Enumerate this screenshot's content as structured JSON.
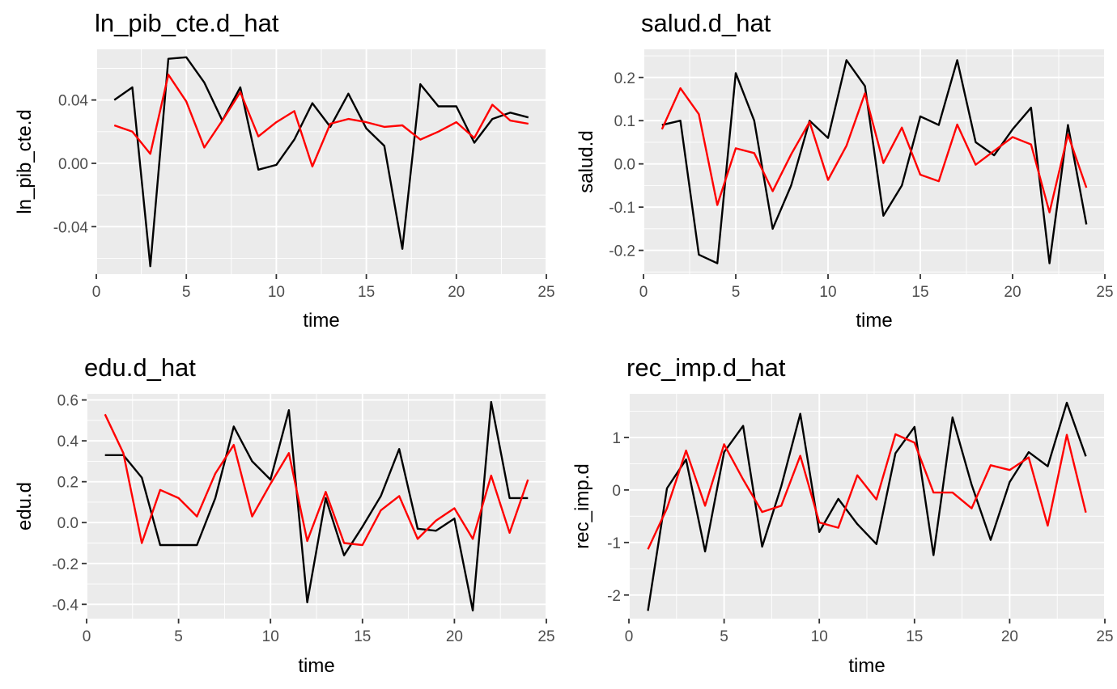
{
  "chart_data": [
    {
      "type": "line",
      "title": "ln_pib_cte.d_hat",
      "xlabel": "time",
      "ylabel": "ln_pib_cte.d",
      "xlim": [
        0,
        25
      ],
      "ylim": [
        -0.07,
        0.072
      ],
      "x_ticks": [
        0,
        5,
        10,
        15,
        20,
        25
      ],
      "y_ticks": [
        -0.04,
        0.0,
        0.04
      ],
      "y_tick_labels": [
        "-0.04",
        "0.00",
        "0.04"
      ],
      "grid": true,
      "legend": "none",
      "series": [
        {
          "color": "#000000",
          "x": [
            1,
            2,
            3,
            4,
            5,
            6,
            7,
            8,
            9,
            10,
            11,
            12,
            13,
            14,
            15,
            16,
            17,
            18,
            19,
            20,
            21,
            22,
            23,
            24
          ],
          "values": [
            0.04,
            0.048,
            -0.065,
            0.066,
            0.067,
            0.051,
            0.027,
            0.048,
            -0.004,
            -0.001,
            0.015,
            0.038,
            0.023,
            0.044,
            0.022,
            0.011,
            -0.054,
            0.05,
            0.036,
            0.036,
            0.013,
            0.028,
            0.032,
            0.029
          ]
        },
        {
          "color": "#ff0000",
          "x": [
            1,
            2,
            3,
            4,
            5,
            6,
            7,
            8,
            9,
            10,
            11,
            12,
            13,
            14,
            15,
            16,
            17,
            18,
            19,
            20,
            21,
            22,
            23,
            24
          ],
          "values": [
            0.024,
            0.02,
            0.006,
            0.056,
            0.039,
            0.01,
            0.027,
            0.045,
            0.017,
            0.026,
            0.033,
            -0.002,
            0.025,
            0.028,
            0.026,
            0.023,
            0.024,
            0.015,
            0.02,
            0.026,
            0.016,
            0.037,
            0.027,
            0.025
          ]
        }
      ]
    },
    {
      "type": "line",
      "title": "salud.d_hat",
      "xlabel": "time",
      "ylabel": "salud.d",
      "xlim": [
        0,
        25
      ],
      "ylim": [
        -0.255,
        0.265
      ],
      "x_ticks": [
        0,
        5,
        10,
        15,
        20,
        25
      ],
      "y_ticks": [
        -0.2,
        -0.1,
        0.0,
        0.1,
        0.2
      ],
      "y_tick_labels": [
        "-0.2",
        "-0.1",
        "0.0",
        "0.1",
        "0.2"
      ],
      "grid": true,
      "legend": "none",
      "series": [
        {
          "color": "#000000",
          "x": [
            1,
            2,
            3,
            4,
            5,
            6,
            7,
            8,
            9,
            10,
            11,
            12,
            13,
            14,
            15,
            16,
            17,
            18,
            19,
            20,
            21,
            22,
            23,
            24
          ],
          "values": [
            0.09,
            0.1,
            -0.21,
            -0.23,
            0.21,
            0.1,
            -0.15,
            -0.05,
            0.1,
            0.06,
            0.24,
            0.18,
            -0.12,
            -0.05,
            0.11,
            0.09,
            0.24,
            0.05,
            0.02,
            0.08,
            0.13,
            -0.23,
            0.09,
            -0.14
          ]
        },
        {
          "color": "#ff0000",
          "x": [
            1,
            2,
            3,
            4,
            5,
            6,
            7,
            8,
            9,
            10,
            11,
            12,
            13,
            14,
            15,
            16,
            17,
            18,
            19,
            20,
            21,
            22,
            23,
            24
          ],
          "values": [
            0.08,
            0.175,
            0.115,
            -0.095,
            0.036,
            0.025,
            -0.063,
            0.022,
            0.097,
            -0.037,
            0.042,
            0.163,
            0.002,
            0.084,
            -0.025,
            -0.04,
            0.091,
            -0.002,
            0.03,
            0.062,
            0.045,
            -0.112,
            0.068,
            -0.055
          ]
        }
      ]
    },
    {
      "type": "line",
      "title": "edu.d_hat",
      "xlabel": "time",
      "ylabel": "edu.d",
      "xlim": [
        0,
        25
      ],
      "ylim": [
        -0.47,
        0.63
      ],
      "x_ticks": [
        0,
        5,
        10,
        15,
        20,
        25
      ],
      "y_ticks": [
        -0.4,
        -0.2,
        0.0,
        0.2,
        0.4,
        0.6
      ],
      "y_tick_labels": [
        "-0.4",
        "-0.2",
        "0.0",
        "0.2",
        "0.4",
        "0.6"
      ],
      "grid": true,
      "legend": "none",
      "series": [
        {
          "color": "#000000",
          "x": [
            1,
            2,
            3,
            4,
            5,
            6,
            7,
            8,
            9,
            10,
            11,
            12,
            13,
            14,
            15,
            16,
            17,
            18,
            19,
            20,
            21,
            22,
            23,
            24
          ],
          "values": [
            0.33,
            0.33,
            0.22,
            -0.11,
            -0.11,
            -0.11,
            0.12,
            0.47,
            0.3,
            0.21,
            0.55,
            -0.39,
            0.12,
            -0.16,
            -0.02,
            0.13,
            0.36,
            -0.03,
            -0.04,
            0.02,
            -0.43,
            0.59,
            0.12,
            0.12
          ]
        },
        {
          "color": "#ff0000",
          "x": [
            1,
            2,
            3,
            4,
            5,
            6,
            7,
            8,
            9,
            10,
            11,
            12,
            13,
            14,
            15,
            16,
            17,
            18,
            19,
            20,
            21,
            22,
            23,
            24
          ],
          "values": [
            0.53,
            0.34,
            -0.1,
            0.16,
            0.12,
            0.03,
            0.24,
            0.38,
            0.03,
            0.19,
            0.34,
            -0.09,
            0.15,
            -0.1,
            -0.11,
            0.06,
            0.13,
            -0.08,
            0.01,
            0.07,
            -0.08,
            0.23,
            -0.05,
            0.21
          ]
        }
      ]
    },
    {
      "type": "line",
      "title": "rec_imp.d_hat",
      "xlabel": "time",
      "ylabel": "rec_imp.d",
      "xlim": [
        0,
        25
      ],
      "ylim": [
        -2.45,
        1.83
      ],
      "x_ticks": [
        0,
        5,
        10,
        15,
        20,
        25
      ],
      "y_ticks": [
        -2,
        -1,
        0,
        1
      ],
      "y_tick_labels": [
        "-2",
        "-1",
        "0",
        "1"
      ],
      "grid": true,
      "legend": "none",
      "series": [
        {
          "color": "#000000",
          "x": [
            1,
            2,
            3,
            4,
            5,
            6,
            7,
            8,
            9,
            10,
            11,
            12,
            13,
            14,
            15,
            16,
            17,
            18,
            19,
            20,
            21,
            22,
            23,
            24
          ],
          "values": [
            -2.3,
            0.03,
            0.58,
            -1.17,
            0.72,
            1.22,
            -1.08,
            0.07,
            1.45,
            -0.8,
            -0.17,
            -0.65,
            -1.03,
            0.7,
            1.2,
            -1.24,
            1.38,
            0.1,
            -0.95,
            0.15,
            0.72,
            0.45,
            1.66,
            0.64
          ]
        },
        {
          "color": "#ff0000",
          "x": [
            1,
            2,
            3,
            4,
            5,
            6,
            7,
            8,
            9,
            10,
            11,
            12,
            13,
            14,
            15,
            16,
            17,
            18,
            19,
            20,
            21,
            22,
            23,
            24
          ],
          "values": [
            -1.13,
            -0.35,
            0.75,
            -0.3,
            0.87,
            0.2,
            -0.42,
            -0.3,
            0.65,
            -0.62,
            -0.72,
            0.28,
            -0.18,
            1.06,
            0.9,
            -0.05,
            -0.05,
            -0.35,
            0.47,
            0.38,
            0.62,
            -0.68,
            1.05,
            -0.43
          ]
        }
      ]
    }
  ]
}
